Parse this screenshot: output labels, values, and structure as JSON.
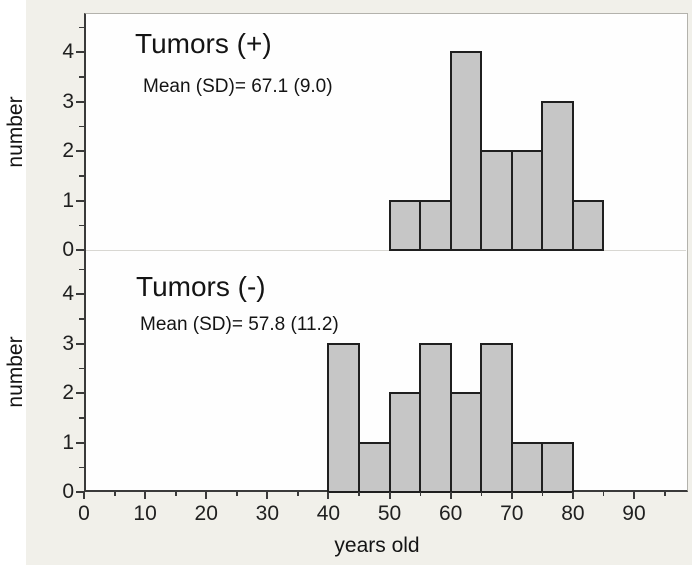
{
  "figure": {
    "y_axis_title": "number",
    "x_axis_title": "years old",
    "colors": {
      "background": "#f1f0ea",
      "plot_background": "#fefefe",
      "frame": "#b3b2ac",
      "axis": "#3a3a3a",
      "divider": "#d8d7d2",
      "bar_fill": "#c6c6c6",
      "bar_stroke": "#1f1f1f",
      "text": "#141414"
    }
  },
  "chart_data": [
    {
      "type": "bar",
      "subtype": "histogram",
      "panel": "top",
      "title": "Tumors (+)",
      "annotation": "Mean (SD)= 67.1 (9.0)",
      "mean": 67.1,
      "sd": 9.0,
      "bin_start": 50,
      "bin_width": 5,
      "bin_edges": [
        50,
        55,
        60,
        65,
        70,
        75,
        80,
        85
      ],
      "counts": [
        1,
        1,
        4,
        2,
        2,
        3,
        1
      ],
      "ylabel": "number",
      "ylim": [
        0,
        4.8
      ],
      "yticks_major": [
        0,
        1,
        2,
        3,
        4
      ],
      "yticks_minor": [
        0.5,
        1.5,
        2.5,
        3.5,
        4.5
      ]
    },
    {
      "type": "bar",
      "subtype": "histogram",
      "panel": "bottom",
      "title": "Tumors (-)",
      "annotation": "Mean (SD)= 57.8 (11.2)",
      "mean": 57.8,
      "sd": 11.2,
      "bin_start": 40,
      "bin_width": 5,
      "bin_edges": [
        40,
        45,
        50,
        55,
        60,
        65,
        70,
        75,
        80
      ],
      "counts": [
        3,
        1,
        2,
        3,
        2,
        3,
        1,
        1
      ],
      "ylabel": "number",
      "ylim": [
        0,
        4.9
      ],
      "yticks_major": [
        0,
        1,
        2,
        3,
        4
      ],
      "yticks_minor": [
        0.5,
        1.5,
        2.5,
        3.5,
        4.5
      ]
    }
  ],
  "x_axis": {
    "label": "years old",
    "major_ticks": [
      0,
      10,
      20,
      30,
      40,
      50,
      60,
      70,
      80,
      90
    ],
    "minor_ticks": [
      5,
      15,
      25,
      35,
      45,
      55,
      65,
      75,
      85,
      95
    ],
    "range": [
      0,
      98.8
    ],
    "grid": false
  }
}
